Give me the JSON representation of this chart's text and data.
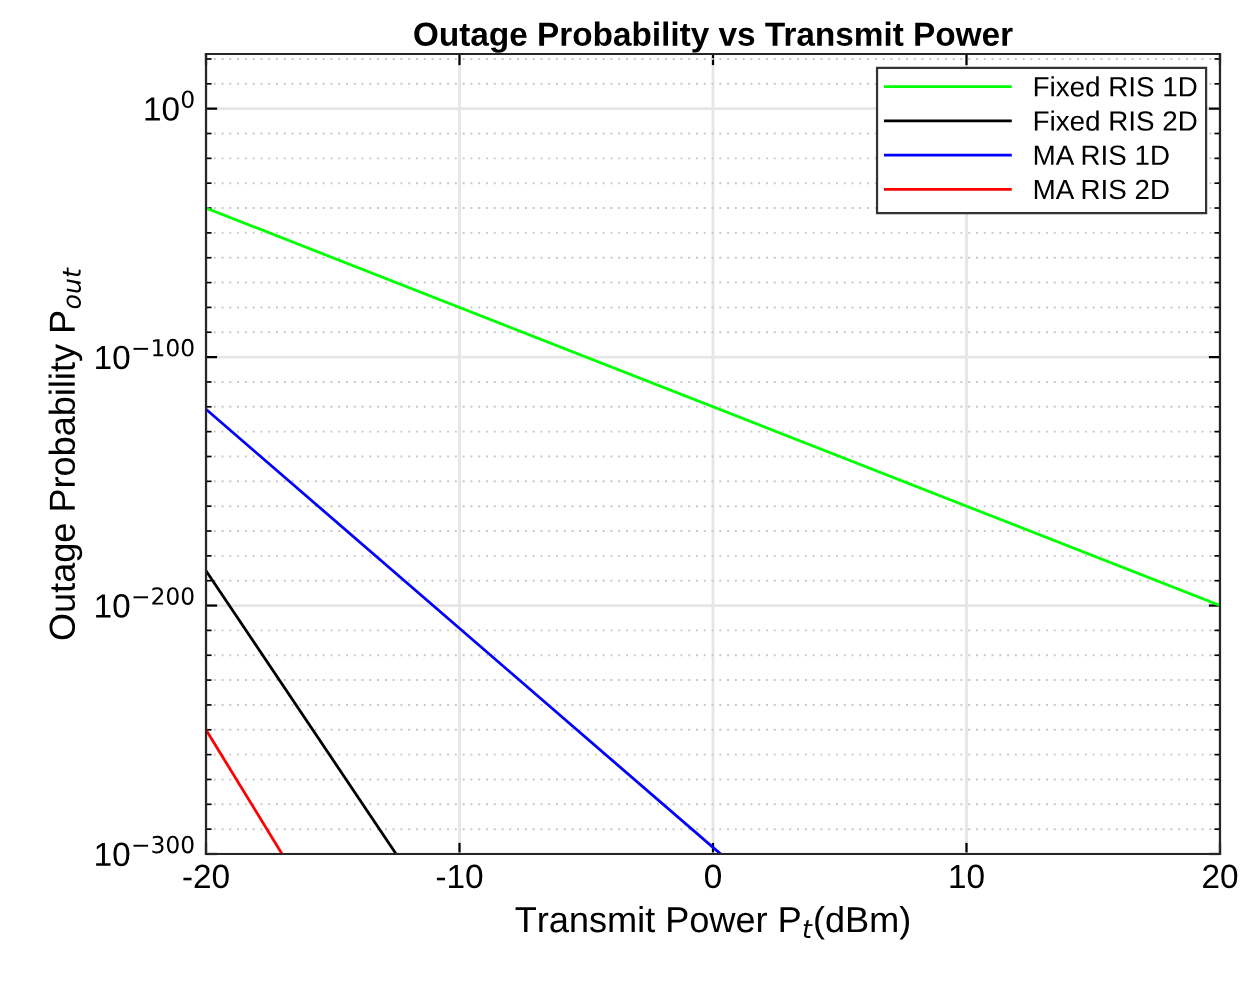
{
  "chart_data": {
    "type": "line",
    "title": "Outage Probability vs Transmit Power",
    "xlabel": "Transmit Power P$_{t}$(dBm)",
    "ylabel": "Outage Probability P$_{out}$",
    "log": "y",
    "xlim": [
      -20,
      20
    ],
    "xticks": [
      -20,
      -10,
      0,
      10,
      20
    ],
    "ylim": [
      1e-300,
      1e+22
    ],
    "yticks": [
      {
        "value": 1e-300,
        "label": "10$^{−300}$"
      },
      {
        "value": 1e-200,
        "label": "10$^{−200}$"
      },
      {
        "value": 1e-100,
        "label": "10$^{−100}$"
      },
      {
        "value": 1,
        "label": "10$^{0}$"
      }
    ],
    "grid": true,
    "legend": "top right",
    "marker": "none",
    "line_style": "solid",
    "series": [
      {
        "name": "Fixed RIS 1D",
        "color": "#00ff00",
        "x": [
          -20,
          20
        ],
        "values": [
          1e-40,
          1e-200
        ]
      },
      {
        "name": "Fixed RIS 2D",
        "color": "#000000",
        "x": [
          -20,
          -12.5
        ],
        "values": [
          1e-186,
          1e-300
        ]
      },
      {
        "name": "MA RIS 1D",
        "color": "#0000ff",
        "x": [
          -20,
          0.3
        ],
        "values": [
          1e-121,
          1e-300
        ]
      },
      {
        "name": "MA RIS 2D",
        "color": "#ff0000",
        "x": [
          -20,
          -17
        ],
        "values": [
          1e-250,
          1e-300
        ]
      }
    ]
  }
}
